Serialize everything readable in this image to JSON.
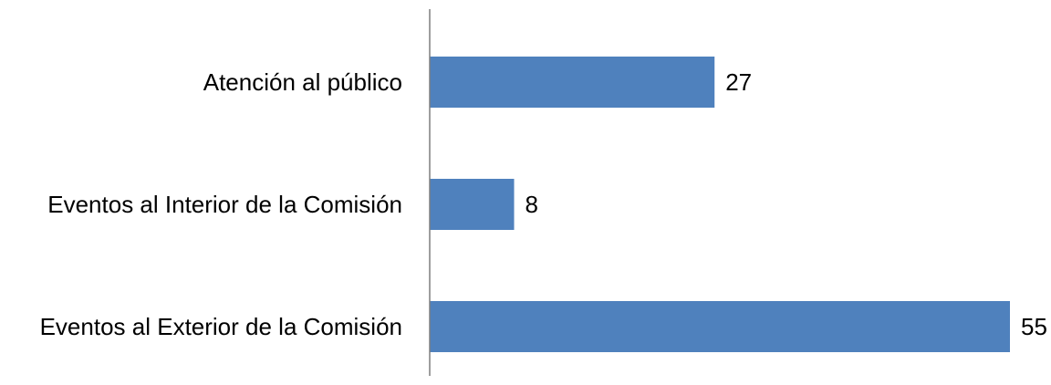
{
  "chart_data": {
    "type": "bar",
    "orientation": "horizontal",
    "categories": [
      "Atención al público",
      "Eventos al Interior de la Comisión",
      "Eventos al Exterior de la Comisión"
    ],
    "values": [
      27,
      8,
      55
    ],
    "data_labels": [
      "27",
      "8",
      "55"
    ],
    "xlim": [
      0,
      55
    ],
    "grid": false,
    "legend": "none",
    "bar_color": "#4f81bd",
    "axis_color": "#7f7f7f"
  }
}
